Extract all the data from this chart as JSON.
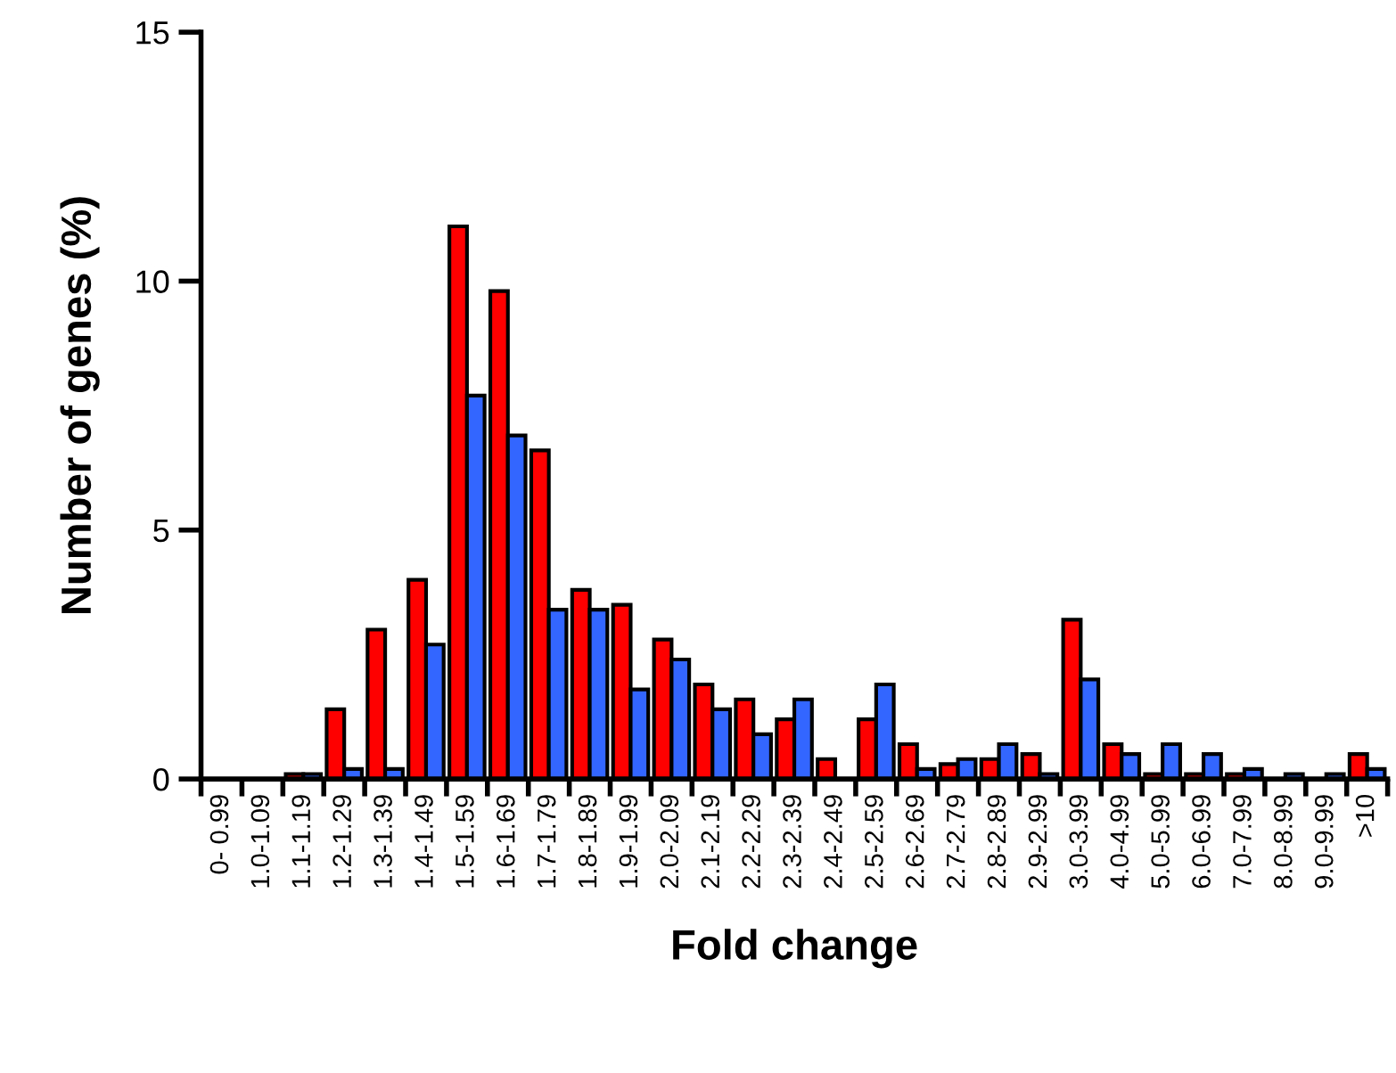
{
  "chart_data": {
    "type": "bar",
    "xlabel": "Fold change",
    "ylabel": "Number of genes (%)",
    "categories": [
      "0- 0.99",
      "1.0-1.09",
      "1.1-1.19",
      "1.2-1.29",
      "1.3-1.39",
      "1.4-1.49",
      "1.5-1.59",
      "1.6-1.69",
      "1.7-1.79",
      "1.8-1.89",
      "1.9-1.99",
      "2.0-2.09",
      "2.1-2.19",
      "2.2-2.29",
      "2.3-2.39",
      "2.4-2.49",
      "2.5-2.59",
      "2.6-2.69",
      "2.7-2.79",
      "2.8-2.89",
      "2.9-2.99",
      "3.0-3.99",
      "4.0-4.99",
      "5.0-5.99",
      "6.0-6.99",
      "7.0-7.99",
      "8.0-8.99",
      "9.0-9.99",
      ">10"
    ],
    "series": [
      {
        "color": "#ff0000",
        "values": [
          null,
          null,
          0.1,
          1.4,
          3.0,
          4.0,
          11.1,
          9.8,
          6.6,
          3.8,
          3.5,
          2.8,
          1.9,
          1.6,
          1.2,
          0.4,
          1.2,
          0.7,
          0.3,
          0.4,
          0.5,
          3.2,
          0.7,
          0.1,
          0.1,
          0.1,
          null,
          null,
          0.5
        ]
      },
      {
        "color": "#3366ff",
        "values": [
          null,
          null,
          0.1,
          0.2,
          0.2,
          2.7,
          7.7,
          6.9,
          3.4,
          3.4,
          1.8,
          2.4,
          1.4,
          0.9,
          1.6,
          null,
          1.9,
          0.2,
          0.4,
          0.7,
          0.1,
          2.0,
          0.5,
          0.7,
          0.5,
          0.2,
          0.1,
          0.1,
          0.2
        ]
      }
    ],
    "ylim": [
      0,
      15
    ],
    "yticks": [
      0,
      5,
      10,
      15
    ],
    "grid": false,
    "legend": false
  }
}
